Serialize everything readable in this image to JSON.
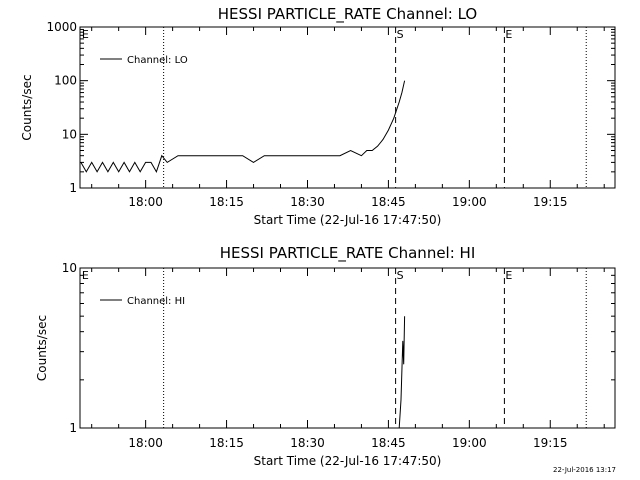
{
  "chart_data": [
    {
      "type": "line",
      "title": "HESSI PARTICLE_RATE Channel: LO",
      "xlabel": "Start Time (22-Jul-16 17:47:50)",
      "ylabel": "Counts/sec",
      "yscale": "log",
      "ylim": [
        1,
        1000
      ],
      "ytick_labels": [
        "1",
        "10",
        "100",
        "1000"
      ],
      "xlim": [
        "17:47:50",
        "19:27:00"
      ],
      "xtick_labels": [
        "18:00",
        "18:15",
        "18:30",
        "18:45",
        "19:00",
        "19:15"
      ],
      "grid": false,
      "legend_position": "top-left",
      "series": [
        {
          "name": "Channel: LO",
          "color": "#000000",
          "x": [
            "17:48:00",
            "17:49:00",
            "17:50:00",
            "17:51:00",
            "17:52:00",
            "17:53:00",
            "17:54:00",
            "17:55:00",
            "17:56:00",
            "17:57:00",
            "17:58:00",
            "17:59:00",
            "18:00:00",
            "18:01:00",
            "18:02:00",
            "18:03:00",
            "18:04:00",
            "18:06:00",
            "18:08:00",
            "18:10:00",
            "18:12:00",
            "18:14:00",
            "18:16:00",
            "18:18:00",
            "18:20:00",
            "18:22:00",
            "18:24:00",
            "18:26:00",
            "18:28:00",
            "18:30:00",
            "18:32:00",
            "18:34:00",
            "18:36:00",
            "18:38:00",
            "18:40:00",
            "18:41:00",
            "18:42:00",
            "18:43:00",
            "18:44:00",
            "18:45:00",
            "18:46:00",
            "18:47:00",
            "18:47:30",
            "18:48:00"
          ],
          "values": [
            3,
            2,
            3,
            2,
            3,
            2,
            3,
            2,
            3,
            2,
            3,
            2,
            3,
            3,
            2,
            4,
            3,
            4,
            4,
            4,
            4,
            4,
            4,
            4,
            3,
            4,
            4,
            4,
            4,
            4,
            4,
            4,
            4,
            5,
            4,
            5,
            5,
            6,
            8,
            12,
            20,
            40,
            60,
            100
          ]
        }
      ],
      "markers": [
        {
          "label": "E",
          "time": "17:48:00",
          "style": "dashed"
        },
        {
          "label": "",
          "time": "18:03:20",
          "style": "dotted"
        },
        {
          "label": "S",
          "time": "18:46:20",
          "style": "dashed"
        },
        {
          "label": "E",
          "time": "19:06:30",
          "style": "dashed"
        },
        {
          "label": "",
          "time": "19:21:40",
          "style": "dotted"
        }
      ]
    },
    {
      "type": "line",
      "title": "HESSI PARTICLE_RATE Channel: HI",
      "xlabel": "Start Time (22-Jul-16 17:47:50)",
      "ylabel": "Counts/sec",
      "yscale": "log",
      "ylim": [
        1,
        10
      ],
      "ytick_labels": [
        "1",
        "10"
      ],
      "xlim": [
        "17:47:50",
        "19:27:00"
      ],
      "xtick_labels": [
        "18:00",
        "18:15",
        "18:30",
        "18:45",
        "19:00",
        "19:15"
      ],
      "grid": false,
      "legend_position": "top-left",
      "series": [
        {
          "name": "Channel: HI",
          "color": "#000000",
          "x": [
            "18:47:00",
            "18:47:20",
            "18:47:40",
            "18:47:50",
            "18:48:00"
          ],
          "values": [
            0.9,
            1.5,
            3.5,
            2.5,
            5
          ]
        }
      ],
      "markers": [
        {
          "label": "E",
          "time": "17:48:00",
          "style": "dashed"
        },
        {
          "label": "",
          "time": "18:03:20",
          "style": "dotted"
        },
        {
          "label": "S",
          "time": "18:46:20",
          "style": "dashed"
        },
        {
          "label": "E",
          "time": "19:06:30",
          "style": "dashed"
        },
        {
          "label": "",
          "time": "19:21:40",
          "style": "dotted"
        }
      ]
    }
  ],
  "footer": {
    "timestamp": "22-Jul-2016 13:17"
  }
}
